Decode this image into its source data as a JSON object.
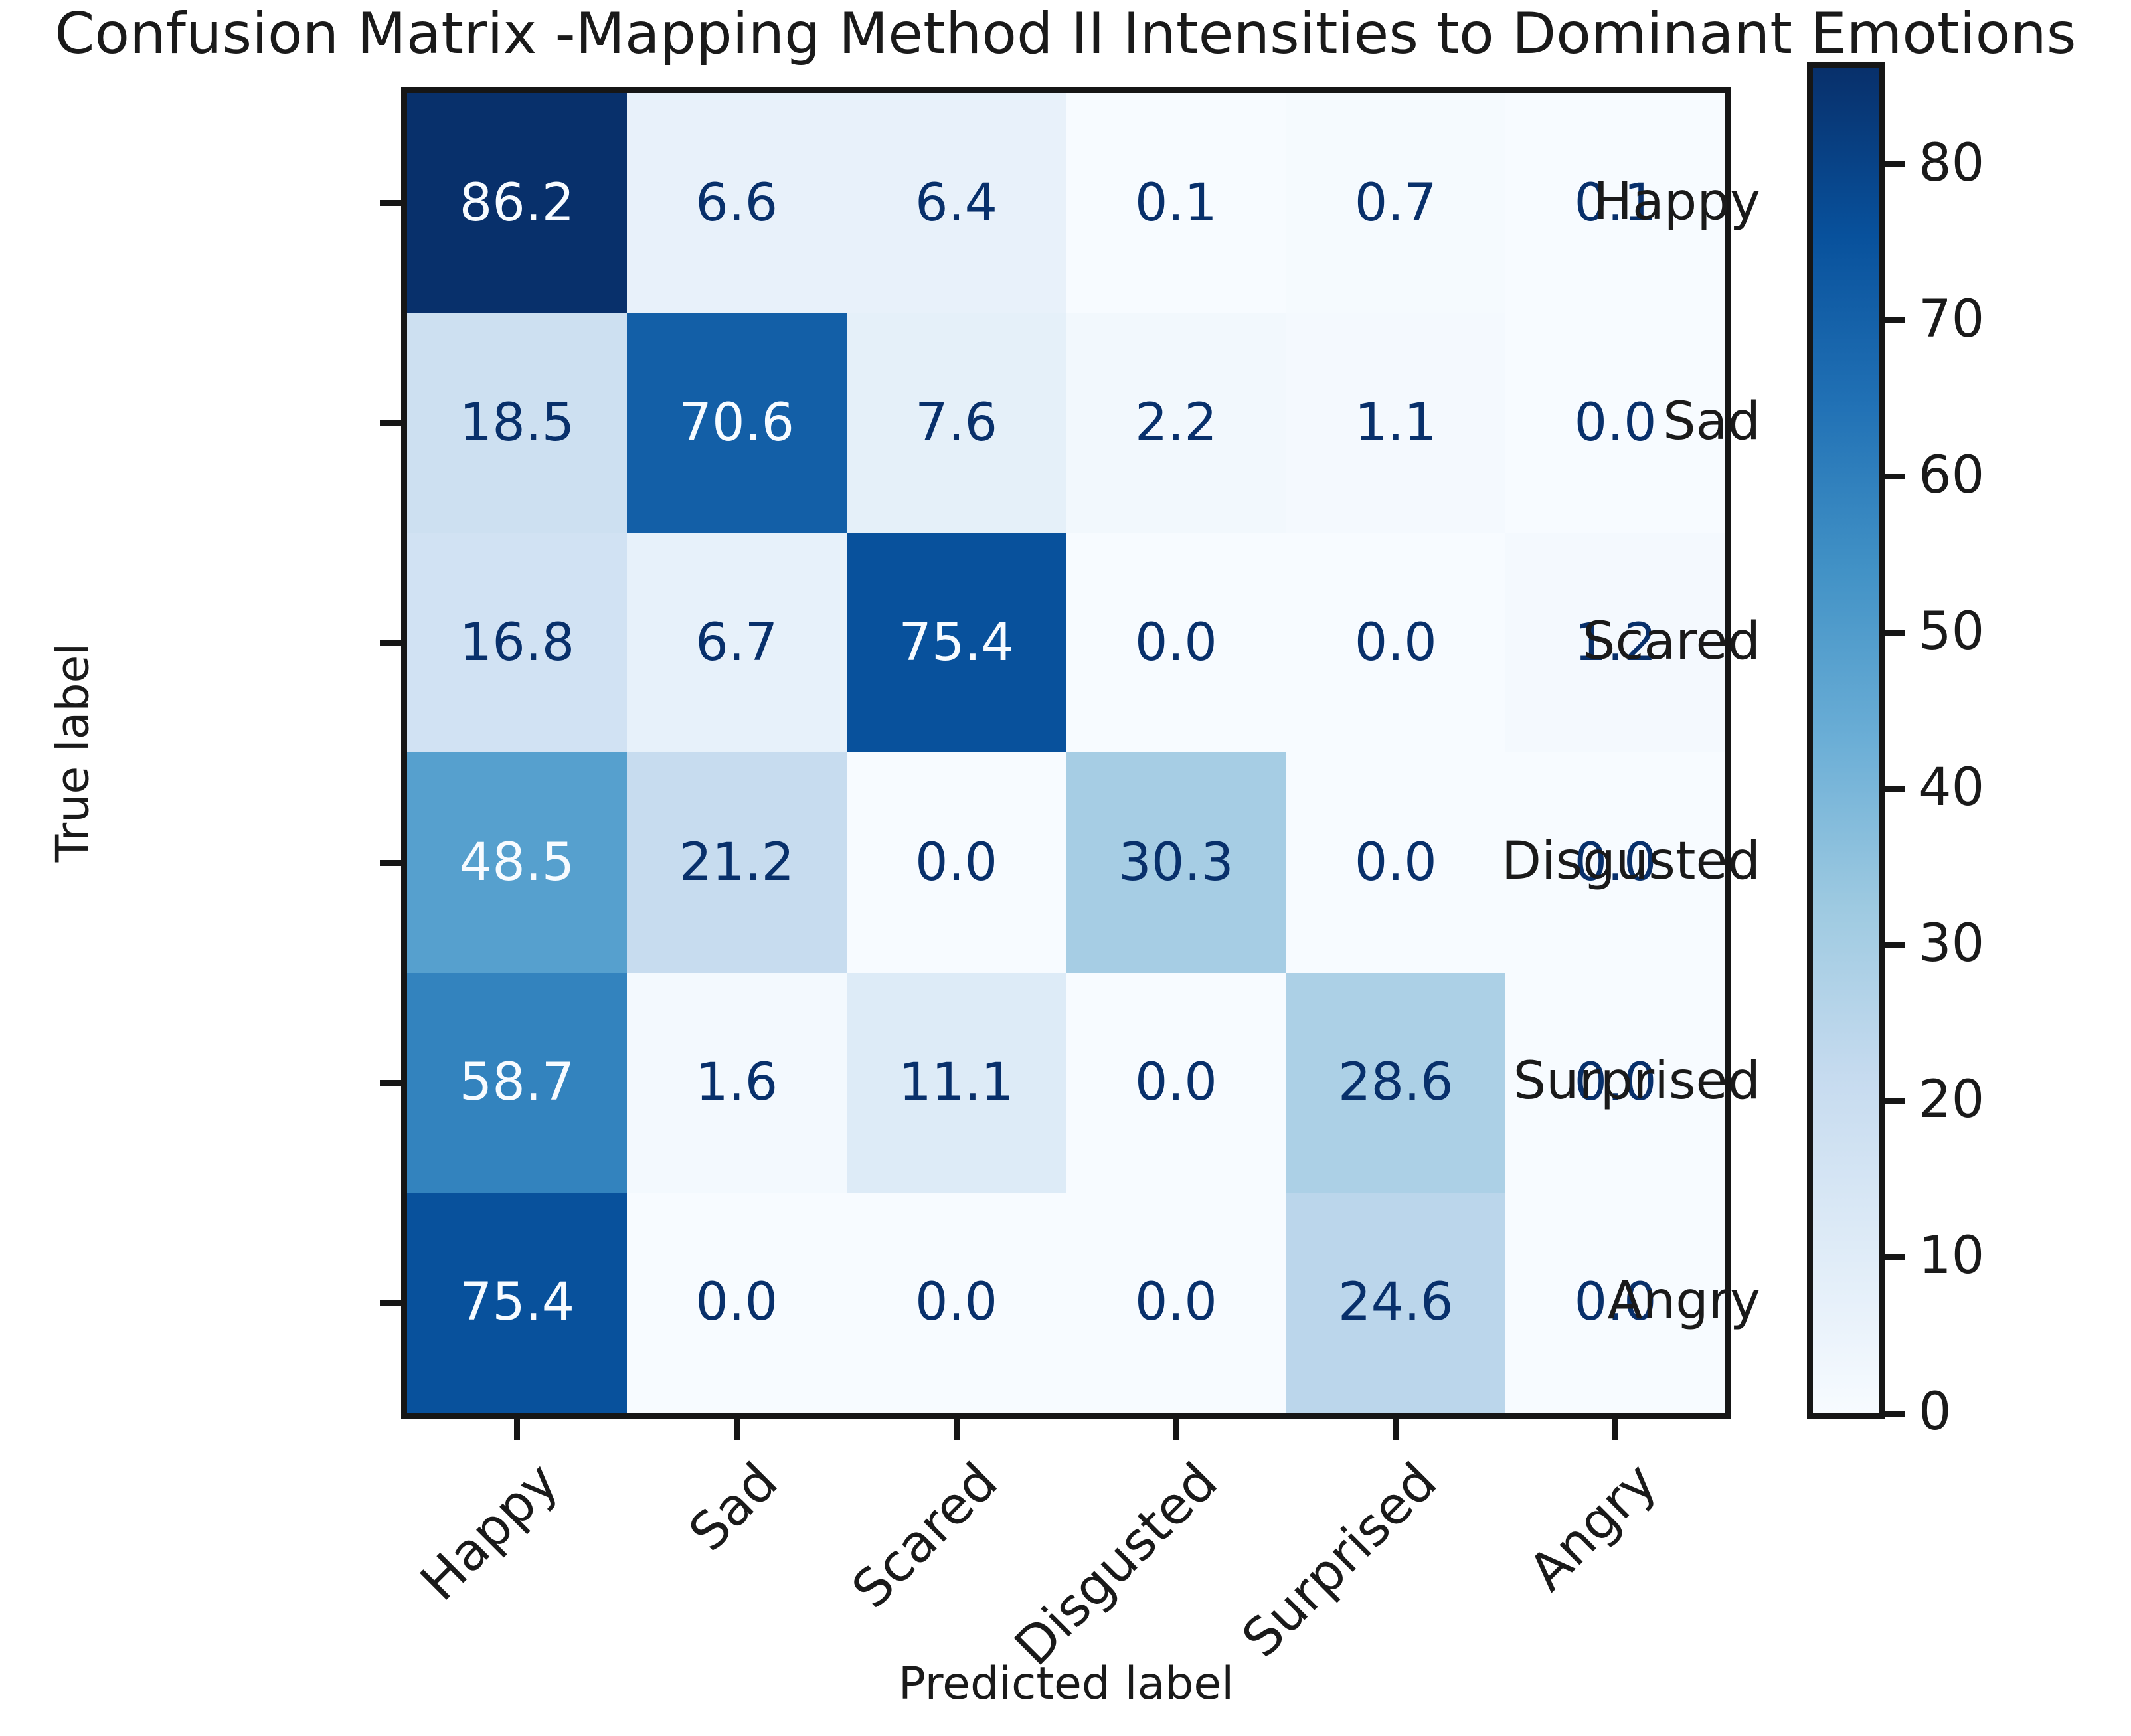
{
  "title": "Confusion Matrix -Mapping Method II Intensities to Dominant Emotions",
  "axes": {
    "xlabel": "Predicted label",
    "ylabel": "True label"
  },
  "chart_data": {
    "type": "heatmap",
    "x_categories": [
      "Happy",
      "Sad",
      "Scared",
      "Disgusted",
      "Surprised",
      "Angry"
    ],
    "y_categories": [
      "Happy",
      "Sad",
      "Scared",
      "Disgusted",
      "Surprised",
      "Angry"
    ],
    "values": [
      [
        86.2,
        6.6,
        6.4,
        0.1,
        0.7,
        0.1
      ],
      [
        18.5,
        70.6,
        7.6,
        2.2,
        1.1,
        0.0
      ],
      [
        16.8,
        6.7,
        75.4,
        0.0,
        0.0,
        1.2
      ],
      [
        48.5,
        21.2,
        0.0,
        30.3,
        0.0,
        0.0
      ],
      [
        58.7,
        1.6,
        11.1,
        0.0,
        28.6,
        0.0
      ],
      [
        75.4,
        0.0,
        0.0,
        0.0,
        24.6,
        0.0
      ]
    ],
    "value_decimals": 1,
    "vmin": 0,
    "vmax": 86.2,
    "colormap": {
      "name": "Blues",
      "anchors": [
        "#f7fbff",
        "#deebf7",
        "#c6dbef",
        "#9ecae1",
        "#6baed6",
        "#4292c6",
        "#2171b5",
        "#08519c",
        "#08306b"
      ]
    },
    "cell_text_color_on_dark": "#f7fbff",
    "cell_text_color_on_light": "#08306b",
    "colorbar_ticks": [
      0,
      10,
      20,
      30,
      40,
      50,
      60,
      70,
      80
    ],
    "colorbar_position": "right",
    "grid": false
  }
}
